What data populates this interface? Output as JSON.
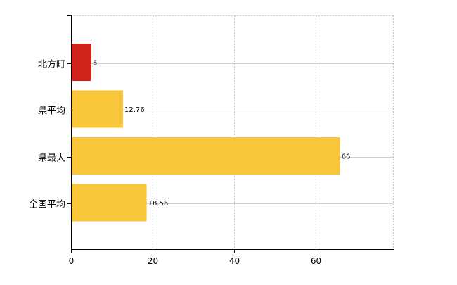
{
  "chart_data": {
    "type": "bar",
    "orientation": "horizontal",
    "categories": [
      "北方町",
      "県平均",
      "県最大",
      "全国平均"
    ],
    "values": [
      5,
      12.76,
      66,
      18.56
    ],
    "value_labels": [
      "5",
      "12.76",
      "66",
      "18.56"
    ],
    "bar_colors": [
      "#d0231a",
      "#f9c53a",
      "#f9c53a",
      "#f9c53a"
    ],
    "xlim": [
      0,
      79
    ],
    "xticks": [
      0,
      20,
      40,
      60
    ],
    "xtick_labels": [
      "0",
      "20",
      "40",
      "60"
    ],
    "grid": true,
    "title": "",
    "xlabel": "",
    "ylabel": ""
  }
}
